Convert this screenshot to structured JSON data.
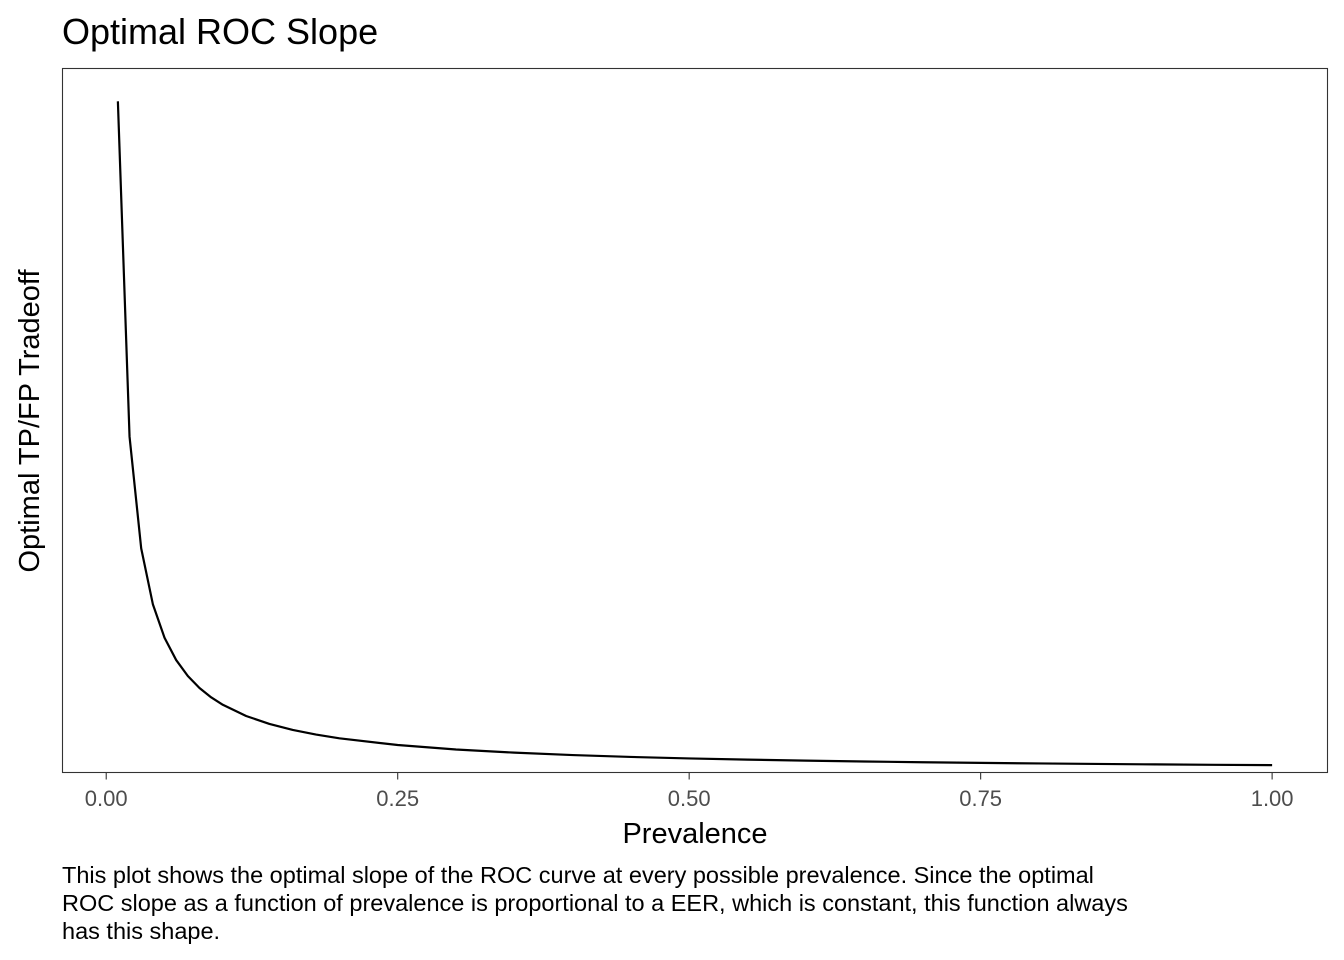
{
  "chart_data": {
    "type": "line",
    "title": "Optimal ROC Slope",
    "xlabel": "Prevalence",
    "ylabel": "Optimal TP/FP Tradeoff",
    "xlim": [
      -0.0375,
      1.0475
    ],
    "ylim": [
      -5.1,
      99.9
    ],
    "x_ticks": [
      0.0,
      0.25,
      0.5,
      0.75,
      1.0
    ],
    "x_tick_labels": [
      "0.00",
      "0.25",
      "0.50",
      "0.75",
      "1.00"
    ],
    "y_tick_labels_shown": false,
    "grid": false,
    "legend": "none",
    "line_color": "#000000",
    "series": [
      {
        "x": [
          0.01,
          0.02,
          0.03,
          0.04,
          0.05,
          0.06,
          0.07,
          0.08,
          0.09,
          0.1,
          0.12,
          0.14,
          0.16,
          0.18,
          0.2,
          0.25,
          0.3,
          0.35,
          0.4,
          0.45,
          0.5,
          0.55,
          0.6,
          0.65,
          0.7,
          0.75,
          0.8,
          0.85,
          0.9,
          0.95,
          1.0
        ],
        "y": [
          95.0,
          45.0,
          28.33,
          20.0,
          15.0,
          11.67,
          9.29,
          7.5,
          6.11,
          5.0,
          3.33,
          2.14,
          1.25,
          0.56,
          0.0,
          -1.0,
          -1.67,
          -2.14,
          -2.5,
          -2.78,
          -3.0,
          -3.18,
          -3.33,
          -3.46,
          -3.57,
          -3.67,
          -3.75,
          -3.82,
          -3.89,
          -3.95,
          -4.0
        ]
      }
    ]
  },
  "caption": "This plot shows the optimal slope of the ROC curve at every possible prevalence. Since the optimal ROC slope as a function of prevalence is proportional to a EER, which is constant, this function always has this shape."
}
